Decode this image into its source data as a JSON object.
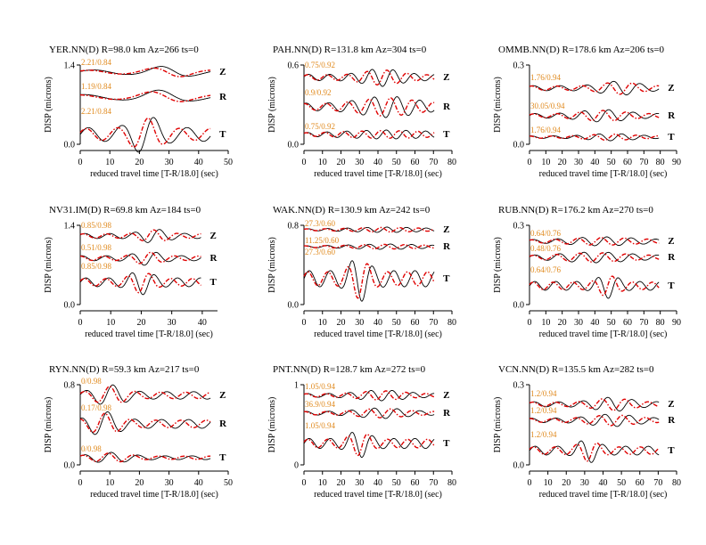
{
  "chart_data": [
    {
      "type": "line",
      "title": "YER.NN(D) R=98.0 km Az=266 ts=0",
      "xlabel": "reduced travel time [T-R/18.0] (sec)",
      "ylabel": "DISP (microns)",
      "xlim": [
        0,
        50
      ],
      "xticks": [
        "0",
        "10",
        "20",
        "30",
        "40",
        "50"
      ],
      "ylim": [
        0,
        1.4
      ],
      "ytick_labels": [
        "0.0",
        "1.4"
      ],
      "traces": [
        {
          "component": "Z",
          "annotation": "2.21/0.84"
        },
        {
          "component": "R",
          "annotation": "1.19/0.84"
        },
        {
          "component": "T",
          "annotation": "2.21/0.84"
        }
      ]
    },
    {
      "type": "line",
      "title": "PAH.NN(D) R=131.8 km Az=304 ts=0",
      "xlabel": "reduced travel time [T-R/18.0] (sec)",
      "ylabel": "DISP (microns)",
      "xlim": [
        0,
        80
      ],
      "xticks": [
        "0",
        "10",
        "20",
        "30",
        "40",
        "50",
        "60",
        "70",
        "80"
      ],
      "ylim": [
        0,
        0.6
      ],
      "ytick_labels": [
        "0.0",
        "0.6"
      ],
      "traces": [
        {
          "component": "Z",
          "annotation": "0.75/0.92"
        },
        {
          "component": "R",
          "annotation": "0.9/0.92"
        },
        {
          "component": "T",
          "annotation": "0.75/0.92"
        }
      ]
    },
    {
      "type": "line",
      "title": "OMMB.NN(D) R=178.6 km Az=206 ts=0",
      "xlabel": "reduced travel time [T-R/18.0] (sec)",
      "ylabel": "DISP (microns)",
      "xlim": [
        0,
        90
      ],
      "xticks": [
        "0",
        "10",
        "20",
        "30",
        "40",
        "50",
        "60",
        "70",
        "80",
        "90"
      ],
      "ylim": [
        0,
        0.3
      ],
      "ytick_labels": [
        "0.0",
        "0.3"
      ],
      "traces": [
        {
          "component": "Z",
          "annotation": "1.76/0.94"
        },
        {
          "component": "R",
          "annotation": "30.05/0.94"
        },
        {
          "component": "T",
          "annotation": "1.76/0.94"
        }
      ]
    },
    {
      "type": "line",
      "title": "NV31.IM(D) R=69.8 km Az=184 ts=0",
      "xlabel": "reduced travel time [T-R/18.0] (sec)",
      "ylabel": "DISP (microns)",
      "xlim": [
        0,
        45
      ],
      "xticks": [
        "0",
        "10",
        "20",
        "30",
        "40"
      ],
      "ylim": [
        0,
        1.4
      ],
      "ytick_labels": [
        "0.0",
        "1.4"
      ],
      "traces": [
        {
          "component": "Z",
          "annotation": "0.85/0.98"
        },
        {
          "component": "R",
          "annotation": "0.51/0.98"
        },
        {
          "component": "T",
          "annotation": "0.85/0.98"
        }
      ]
    },
    {
      "type": "line",
      "title": "WAK.NN(D) R=130.9 km Az=242 ts=0",
      "xlabel": "reduced travel time [T-R/18.0] (sec)",
      "ylabel": "DISP (microns)",
      "xlim": [
        0,
        80
      ],
      "xticks": [
        "0",
        "10",
        "20",
        "30",
        "40",
        "50",
        "60",
        "70",
        "80"
      ],
      "ylim": [
        0,
        0.8
      ],
      "ytick_labels": [
        "0.0",
        "0.8"
      ],
      "traces": [
        {
          "component": "Z",
          "annotation": "27.3/0.60"
        },
        {
          "component": "R",
          "annotation": "11.25/0.60"
        },
        {
          "component": "T",
          "annotation": "27.3/0.60"
        }
      ]
    },
    {
      "type": "line",
      "title": "RUB.NN(D) R=176.2 km Az=270 ts=0",
      "xlabel": "reduced travel time [T-R/18.0] (sec)",
      "ylabel": "DISP (microns)",
      "xlim": [
        0,
        90
      ],
      "xticks": [
        "0",
        "10",
        "20",
        "30",
        "40",
        "50",
        "60",
        "70",
        "80",
        "90"
      ],
      "ylim": [
        0,
        0.3
      ],
      "ytick_labels": [
        "0.0",
        "0.3"
      ],
      "traces": [
        {
          "component": "Z",
          "annotation": "0.64/0.76"
        },
        {
          "component": "R",
          "annotation": "0.48/0.76"
        },
        {
          "component": "T",
          "annotation": "0.64/0.76"
        }
      ]
    },
    {
      "type": "line",
      "title": "RYN.NN(D) R=59.3 km Az=217 ts=0",
      "xlabel": "reduced travel time [T-R/18.0] (sec)",
      "ylabel": "DISP (microns)",
      "xlim": [
        0,
        50
      ],
      "xticks": [
        "0",
        "10",
        "20",
        "30",
        "40",
        "50"
      ],
      "ylim": [
        0,
        0.8
      ],
      "ytick_labels": [
        "0.0",
        "0.8"
      ],
      "traces": [
        {
          "component": "Z",
          "annotation": "0/0.98"
        },
        {
          "component": "R",
          "annotation": "0.17/0.98"
        },
        {
          "component": "T",
          "annotation": "0/0.98"
        }
      ]
    },
    {
      "type": "line",
      "title": "PNT.NN(D) R=128.7 km Az=272 ts=0",
      "xlabel": "reduced travel time [T-R/18.0] (sec)",
      "ylabel": "DISP (microns)",
      "xlim": [
        0,
        80
      ],
      "xticks": [
        "0",
        "10",
        "20",
        "30",
        "40",
        "50",
        "60",
        "70",
        "80"
      ],
      "ylim": [
        0,
        1
      ],
      "ytick_labels": [
        "0",
        "1"
      ],
      "traces": [
        {
          "component": "Z",
          "annotation": "1.05/0.94"
        },
        {
          "component": "R",
          "annotation": "36.9/0.94"
        },
        {
          "component": "T",
          "annotation": "1.05/0.94"
        }
      ]
    },
    {
      "type": "line",
      "title": "VCN.NN(D) R=135.5 km Az=282 ts=0",
      "xlabel": "reduced travel time [T-R/18.0] (sec)",
      "ylabel": "DISP (microns)",
      "xlim": [
        0,
        80
      ],
      "xticks": [
        "0",
        "10",
        "20",
        "30",
        "40",
        "50",
        "60",
        "70",
        "80"
      ],
      "ylim": [
        0,
        0.3
      ],
      "ytick_labels": [
        "0.0",
        "0.3"
      ],
      "traces": [
        {
          "component": "Z",
          "annotation": "1.2/0.94"
        },
        {
          "component": "R",
          "annotation": "1.2/0.94"
        },
        {
          "component": "T",
          "annotation": "1.2/0.94"
        }
      ]
    }
  ],
  "colors": {
    "observed": "#000000",
    "synthetic": "#e00000",
    "annotation": "#e08a1e"
  }
}
